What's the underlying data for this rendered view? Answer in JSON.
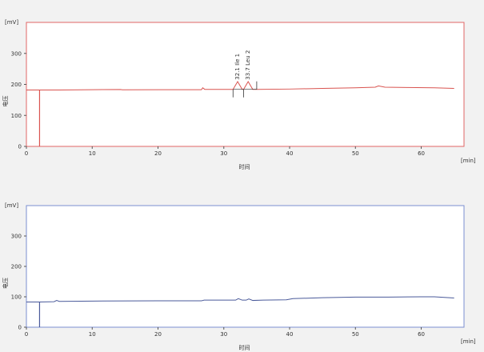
{
  "chart_data": [
    {
      "type": "line",
      "color": "#d9534f",
      "frame_color": "#e06666",
      "ylabel": "电压",
      "yunit": "[mV]",
      "xlabel": "时间",
      "xunit": "[min]",
      "xlim": [
        0,
        66.5
      ],
      "ylim": [
        0,
        400
      ],
      "xticks": [
        0,
        10,
        20,
        30,
        40,
        50,
        60
      ],
      "yticks": [
        0,
        100,
        200,
        300
      ],
      "marker_time": 2.0,
      "series": [
        {
          "x": [
            0,
            5,
            10,
            14.3,
            14.6,
            20,
            26.6,
            26.8,
            27.1,
            31.4,
            32.1,
            32.8,
            33.0,
            33.7,
            34.4,
            35,
            40,
            45,
            50,
            53.0,
            53.5,
            54.5,
            58,
            62,
            65
          ],
          "y": [
            182,
            182,
            183,
            183.5,
            182.5,
            183,
            183,
            189,
            184,
            184,
            209,
            184,
            184,
            209,
            184,
            184,
            185,
            187,
            189,
            191,
            195,
            191,
            190,
            189,
            187
          ]
        }
      ],
      "integration_marks": [
        31.4,
        33.0,
        35.0
      ],
      "peak_labels": [
        {
          "time": 32.1,
          "label": "32.1 Ile  1"
        },
        {
          "time": 33.7,
          "label": "33.7 Leu  2"
        }
      ]
    },
    {
      "type": "line",
      "color": "#4a5a9a",
      "frame_color": "#7b8fd0",
      "ylabel": "电压",
      "yunit": "[mV]",
      "xlabel": "时间",
      "xunit": "[min]",
      "xlim": [
        0,
        66.5
      ],
      "ylim": [
        0,
        400
      ],
      "xticks": [
        0,
        10,
        20,
        30,
        40,
        50,
        60
      ],
      "yticks": [
        0,
        100,
        200,
        300
      ],
      "marker_time": 2.0,
      "series": [
        {
          "x": [
            0,
            2,
            4.2,
            4.6,
            5,
            10,
            20,
            26.6,
            27,
            31.8,
            32.2,
            32.8,
            33.4,
            33.8,
            34.4,
            36,
            39.5,
            40.5,
            45,
            50,
            55,
            60,
            62,
            65
          ],
          "y": [
            83,
            83,
            84,
            88,
            85,
            86,
            87,
            87,
            89,
            89,
            94,
            89,
            89,
            93,
            88,
            89,
            90,
            94,
            97,
            99,
            99,
            100,
            100,
            96
          ]
        }
      ],
      "integration_marks": [],
      "peak_labels": []
    }
  ]
}
